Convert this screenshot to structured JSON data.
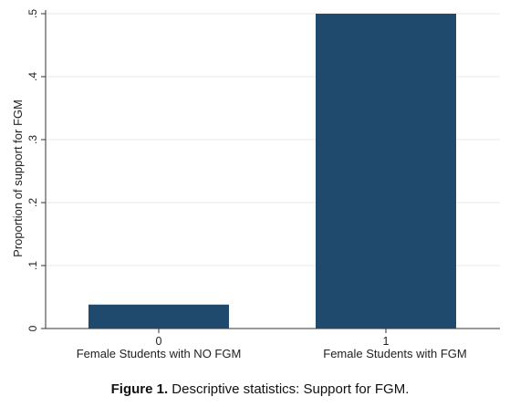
{
  "chart_data": {
    "type": "bar",
    "ylabel": "Proportion  of support for FGM",
    "ylim": [
      0,
      0.5
    ],
    "y_ticks": [
      0,
      0.1,
      0.2,
      0.3,
      0.4,
      0.5
    ],
    "y_tick_labels": [
      "0",
      ".1",
      ".2",
      ".3",
      ".4",
      ".5"
    ],
    "categories": [
      "0",
      "1"
    ],
    "category_labels": [
      "Female Students with NO FGM",
      "Female Students with FGM"
    ],
    "values": [
      0.038,
      0.5
    ],
    "grid": true,
    "bar_color": "#1f4a6e"
  },
  "caption": {
    "label": "Figure 1.",
    "text": " Descriptive statistics: Support for FGM."
  }
}
